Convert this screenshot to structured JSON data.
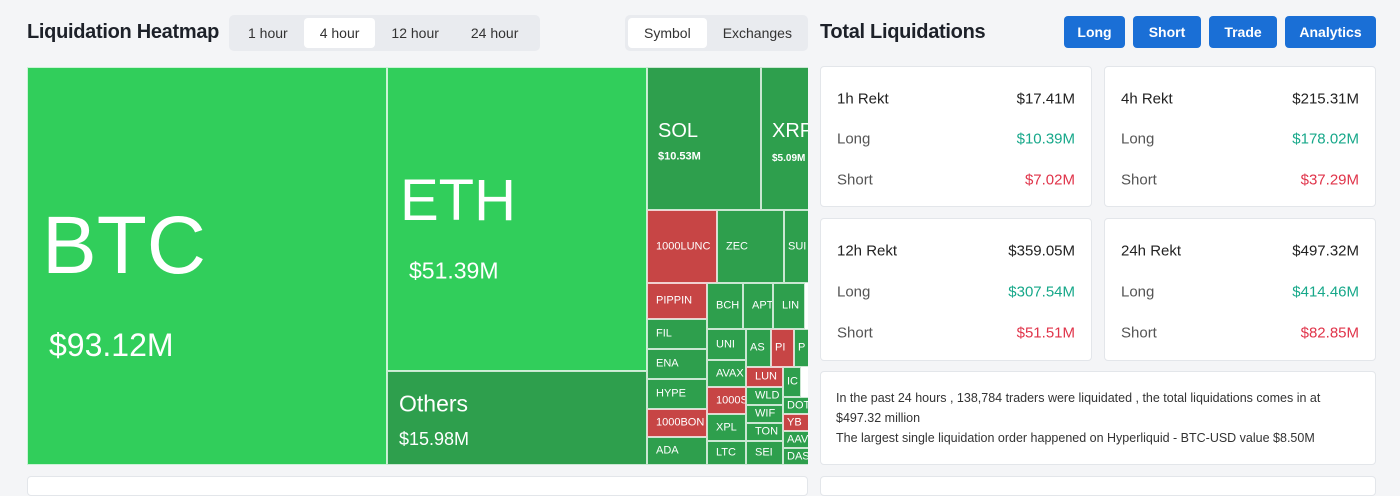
{
  "header": {
    "title": "Liquidation Heatmap",
    "time_tabs": [
      "1 hour",
      "4 hour",
      "12 hour",
      "24 hour"
    ],
    "selected_time_tab": 1,
    "view_tabs": [
      "Symbol",
      "Exchanges"
    ],
    "selected_view_tab": 0
  },
  "treemap": {
    "tiles": [
      {
        "label": "BTC",
        "value": "$93.12M",
        "color": "#31ce5b"
      },
      {
        "label": "ETH",
        "value": "$51.39M",
        "color": "#31ce5b"
      },
      {
        "label": "Others",
        "value": "$15.98M",
        "color": "#2e9f4d"
      },
      {
        "label": "SOL",
        "value": "$10.53M",
        "color": "#2e9f4d"
      },
      {
        "label": "XRP",
        "value": "$5.09M",
        "color": "#2e9f4d"
      },
      {
        "label": "1000LUNC",
        "color": "#c74545"
      },
      {
        "label": "ZEC",
        "color": "#2e9f4d"
      },
      {
        "label": "SUI",
        "color": "#2e9f4d"
      },
      {
        "label": "PIPPIN",
        "color": "#c74545"
      },
      {
        "label": "FIL",
        "color": "#2e9f4d"
      },
      {
        "label": "ENA",
        "color": "#2e9f4d"
      },
      {
        "label": "HYPE",
        "color": "#2e9f4d"
      },
      {
        "label": "1000BON",
        "color": "#c74545"
      },
      {
        "label": "ADA",
        "color": "#2e9f4d"
      },
      {
        "label": "BCH",
        "color": "#2e9f4d"
      },
      {
        "label": "APT",
        "color": "#2e9f4d"
      },
      {
        "label": "LIN",
        "color": "#2e9f4d"
      },
      {
        "label": "UNI",
        "color": "#2e9f4d"
      },
      {
        "label": "AS",
        "color": "#2e9f4d"
      },
      {
        "label": "PI",
        "color": "#c74545"
      },
      {
        "label": "P",
        "color": "#2e9f4d"
      },
      {
        "label": "AVAX",
        "color": "#2e9f4d"
      },
      {
        "label": "LUN",
        "color": "#c74545"
      },
      {
        "label": "IC",
        "color": "#2e9f4d"
      },
      {
        "label": "1000S",
        "color": "#c74545"
      },
      {
        "label": "WLD",
        "color": "#2e9f4d"
      },
      {
        "label": "DOT",
        "color": "#2e9f4d"
      },
      {
        "label": "XPL",
        "color": "#2e9f4d"
      },
      {
        "label": "WIF",
        "color": "#2e9f4d"
      },
      {
        "label": "YB",
        "color": "#c74545"
      },
      {
        "label": "TON",
        "color": "#2e9f4d"
      },
      {
        "label": "AAV",
        "color": "#2e9f4d"
      },
      {
        "label": "LTC",
        "color": "#2e9f4d"
      },
      {
        "label": "SEI",
        "color": "#2e9f4d"
      },
      {
        "label": "DAS",
        "color": "#2e9f4d"
      }
    ]
  },
  "summary": {
    "title": "Total Liquidations",
    "buttons": [
      "Long",
      "Short",
      "Trade",
      "Analytics"
    ],
    "cards": [
      {
        "title": "1h Rekt",
        "total": "$17.41M",
        "rows": [
          {
            "label": "Long",
            "value": "$10.39M"
          },
          {
            "label": "Short",
            "value": "$7.02M"
          }
        ]
      },
      {
        "title": "4h Rekt",
        "total": "$215.31M",
        "rows": [
          {
            "label": "Long",
            "value": "$178.02M"
          },
          {
            "label": "Short",
            "value": "$37.29M"
          }
        ]
      },
      {
        "title": "12h Rekt",
        "total": "$359.05M",
        "rows": [
          {
            "label": "Long",
            "value": "$307.54M"
          },
          {
            "label": "Short",
            "value": "$51.51M"
          }
        ]
      },
      {
        "title": "24h Rekt",
        "total": "$497.32M",
        "rows": [
          {
            "label": "Long",
            "value": "$414.46M"
          },
          {
            "label": "Short",
            "value": "$82.85M"
          }
        ]
      }
    ],
    "message": [
      "In the past 24 hours , 138,784 traders were liquidated , the total liquidations comes in at $497.32 million",
      "The largest single liquidation order happened on Hyperliquid - BTC-USD value $8.50M"
    ]
  }
}
